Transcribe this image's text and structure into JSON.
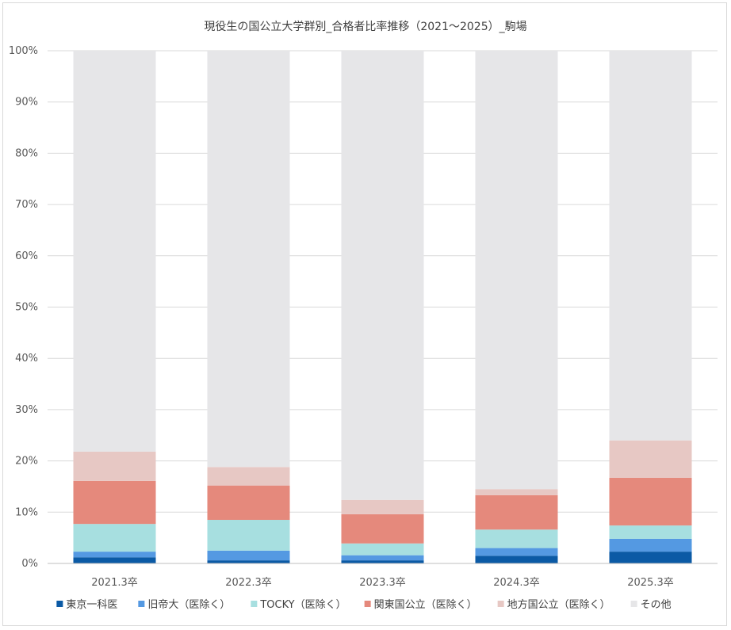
{
  "chart_data": {
    "type": "bar",
    "stacked": true,
    "normalized": true,
    "title": "現役生の国公立大学群別_合格者比率推移（2021～2025）_駒場",
    "xlabel": "",
    "ylabel": "",
    "ylim": [
      0,
      100
    ],
    "y_ticks": [
      "0%",
      "10%",
      "20%",
      "30%",
      "40%",
      "50%",
      "60%",
      "70%",
      "80%",
      "90%",
      "100%"
    ],
    "grid": true,
    "legend_position": "bottom",
    "categories": [
      "2021.3卒",
      "2022.3卒",
      "2023.3卒",
      "2024.3卒",
      "2025.3卒"
    ],
    "series": [
      {
        "name": "東京一科医",
        "color": "#0b5aa5",
        "values": [
          1.2,
          0.6,
          0.6,
          1.5,
          2.3
        ]
      },
      {
        "name": "旧帝大（医除く）",
        "color": "#5499e2",
        "values": [
          1.1,
          1.9,
          1.0,
          1.5,
          2.5
        ]
      },
      {
        "name": "TOCKY（医除く）",
        "color": "#a7dfe0",
        "values": [
          5.4,
          6.0,
          2.3,
          3.6,
          2.6
        ]
      },
      {
        "name": "関東国公立（医除く）",
        "color": "#e5897c",
        "values": [
          8.4,
          6.7,
          5.7,
          6.7,
          9.3
        ]
      },
      {
        "name": "地方国公立（医除く）",
        "color": "#e7c8c4",
        "values": [
          5.7,
          3.6,
          2.8,
          1.2,
          7.3
        ]
      },
      {
        "name": "その他",
        "color": "#e6e6e8",
        "values": [
          78.2,
          81.2,
          87.6,
          85.5,
          76.0
        ]
      }
    ]
  }
}
